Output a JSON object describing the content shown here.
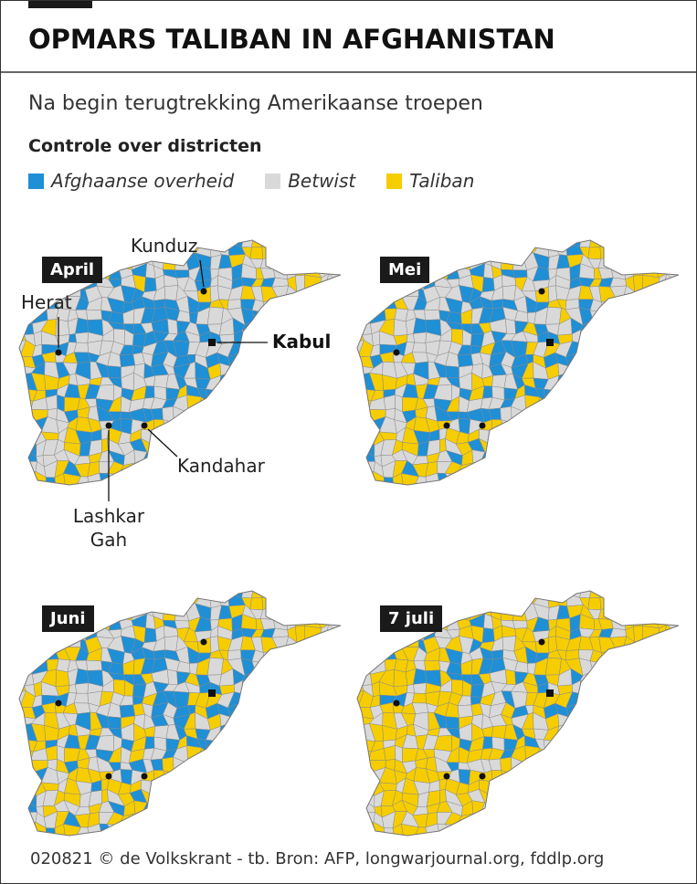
{
  "header": {
    "title": "OPMARS TALIBAN IN AFGHANISTAN"
  },
  "subtitle": "Na begin terugtrekking Amerikaanse troepen",
  "legend": {
    "title": "Controle over districten",
    "items": [
      {
        "label": "Afghaanse overheid",
        "color": "#1f8fd6"
      },
      {
        "label": "Betwist",
        "color": "#d9d9d9"
      },
      {
        "label": "Taliban",
        "color": "#f6cd00"
      }
    ]
  },
  "maps": [
    {
      "label": "April"
    },
    {
      "label": "Mei"
    },
    {
      "label": "Juni"
    },
    {
      "label": "7 juli"
    }
  ],
  "cities": [
    {
      "label": "Kunduz"
    },
    {
      "label": "Herat"
    },
    {
      "label": "Kabul"
    },
    {
      "label": "Kandahar"
    },
    {
      "label": "Lashkar Gah"
    }
  ],
  "footer": "020821 © de Volkskrant - tb. Bron: AFP, longwarjournal.org, fddlp.org"
}
